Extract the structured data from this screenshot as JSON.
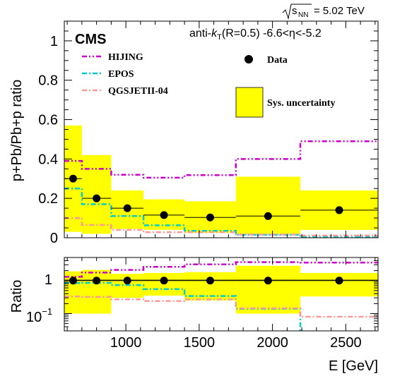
{
  "chart_data": [
    {
      "type": "step",
      "panel": "main",
      "ylabel": "p+Pb/Pb+p ratio",
      "xlim": [
        580,
        2720
      ],
      "ylim": [
        0,
        1.1
      ],
      "yticks": [
        0,
        0.2,
        0.4,
        0.6,
        0.8,
        1
      ],
      "ytick_labels": [
        "0",
        "0.2",
        "0.4",
        "0.6",
        "0.8",
        "1"
      ],
      "bin_edges": [
        580,
        700,
        900,
        1120,
        1400,
        1750,
        2190,
        2720
      ],
      "data": {
        "name": "Data",
        "x": [
          640,
          800,
          1010,
          1260,
          1575,
          1970,
          2455
        ],
        "y": [
          0.3,
          0.2,
          0.15,
          0.115,
          0.103,
          0.11,
          0.14
        ],
        "xerr_lo": [
          60,
          100,
          110,
          140,
          175,
          220,
          265
        ],
        "xerr_hi": [
          60,
          100,
          110,
          140,
          175,
          220,
          265
        ]
      },
      "sys_uncertainty": {
        "name": "Sys. uncertainty",
        "low": [
          0.03,
          0.02,
          0.045,
          0.04,
          0.025,
          0.02,
          0.04
        ],
        "high": [
          0.57,
          0.42,
          0.24,
          0.195,
          0.185,
          0.31,
          0.24
        ]
      },
      "series": [
        {
          "name": "HIJING",
          "color": "#cc00cc",
          "style": "dash-dot-dot",
          "values": [
            0.39,
            0.35,
            0.32,
            0.305,
            0.318,
            0.4,
            0.49
          ]
        },
        {
          "name": "EPOS",
          "color": "#00cccc",
          "style": "dash-dot",
          "values": [
            0.25,
            0.17,
            0.11,
            0.063,
            0.035,
            0.015,
            0.003
          ]
        },
        {
          "name": "QGSJETII-04",
          "color": "#ff9999",
          "style": "dash-dot",
          "values": [
            0.1,
            0.065,
            0.04,
            0.028,
            0.028,
            0.016,
            0.011
          ]
        }
      ]
    },
    {
      "type": "step",
      "panel": "ratio",
      "ylabel": "Ratio",
      "xlabel": "E [GeV]",
      "yscale": "log",
      "ylim": [
        0.03,
        5
      ],
      "ytick_labels": [
        "1",
        "10",
        "−1"
      ],
      "xticks": [
        1000,
        1500,
        2000,
        2500
      ],
      "xtick_labels": [
        "1000",
        "1500",
        "2000",
        "2500"
      ],
      "data": {
        "x": [
          640,
          800,
          1010,
          1260,
          1575,
          1970,
          2455
        ],
        "y": [
          1,
          1,
          1,
          1,
          1,
          1,
          1
        ]
      },
      "sys_uncertainty": {
        "low": [
          0.1,
          0.1,
          0.3,
          0.35,
          0.25,
          0.1,
          0.33
        ],
        "high": [
          1.9,
          2.1,
          1.6,
          1.7,
          1.8,
          2.8,
          1.7
        ]
      },
      "series": [
        {
          "name": "HIJING",
          "color": "#cc00cc",
          "values": [
            1.3,
            1.75,
            2.1,
            2.6,
            3.1,
            3.6,
            3.5
          ]
        },
        {
          "name": "EPOS",
          "color": "#00cccc",
          "values": [
            0.84,
            0.85,
            0.73,
            0.55,
            0.34,
            0.14,
            0.022
          ]
        },
        {
          "name": "QGSJETII-04",
          "color": "#ff9999",
          "values": [
            0.33,
            0.32,
            0.27,
            0.24,
            0.27,
            0.145,
            0.08
          ]
        }
      ]
    }
  ],
  "labels": {
    "energy_sqrt": "s",
    "energy_sub": "NN",
    "energy_value": "= 5.02 TeV",
    "experiment": "CMS",
    "jet_prefix": "anti-",
    "jet_k": "k",
    "jet_sub": "T",
    "jet_suffix": "(R=0.5) -6.6<η<-5.2",
    "ratio_tick_base": "10",
    "ratio_tick_exp": "−1"
  }
}
